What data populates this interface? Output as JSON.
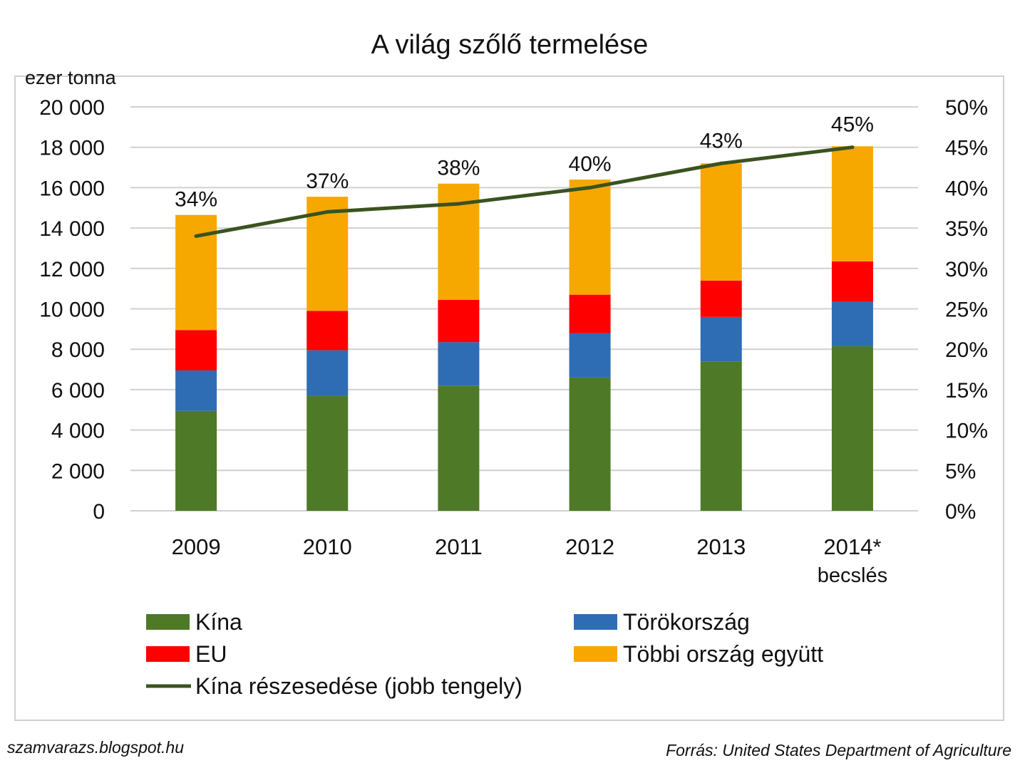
{
  "chart_data": {
    "type": "bar",
    "stacked": true,
    "title": "A világ szőlő termelése",
    "ylabel": "ezer tonna",
    "ylim": [
      0,
      20000
    ],
    "y_ticks": [
      "20 000",
      "18 000",
      "16 000",
      "14 000",
      "12 000",
      "10 000",
      "8 000",
      "6 000",
      "4 000",
      "2 000",
      "0"
    ],
    "y2lim": [
      0,
      50
    ],
    "y2_ticks": [
      "50%",
      "45%",
      "40%",
      "35%",
      "30%",
      "25%",
      "20%",
      "15%",
      "10%",
      "5%",
      "0%"
    ],
    "categories": [
      "2009",
      "2010",
      "2011",
      "2012",
      "2013",
      "2014*"
    ],
    "category_sublabels": [
      "",
      "",
      "",
      "",
      "",
      "becslés"
    ],
    "series": [
      {
        "name": "Kína",
        "color": "#4e7a27",
        "values": [
          4950,
          5700,
          6200,
          6600,
          7400,
          8150
        ]
      },
      {
        "name": "Törökország",
        "color": "#2e6db4",
        "values": [
          2000,
          2250,
          2150,
          2200,
          2200,
          2200
        ]
      },
      {
        "name": "EU",
        "color": "#ff0000",
        "values": [
          2000,
          1950,
          2100,
          1900,
          1800,
          2000
        ]
      },
      {
        "name": "Többi ország együtt",
        "color": "#f6a800",
        "values": [
          5700,
          5650,
          5750,
          5700,
          5800,
          5700
        ]
      }
    ],
    "line": {
      "name": "Kína részesedése (jobb tengely)",
      "color": "#3a5320",
      "axis": "right",
      "values": [
        34,
        37,
        38,
        40,
        43,
        45
      ],
      "labels": [
        "34%",
        "37%",
        "38%",
        "40%",
        "43%",
        "45%"
      ]
    },
    "legend": {
      "placement": "bottom",
      "items": [
        {
          "name": "Kína",
          "kind": "box",
          "color": "#4e7a27"
        },
        {
          "name": "Törökország",
          "kind": "box",
          "color": "#2e6db4"
        },
        {
          "name": "EU",
          "kind": "box",
          "color": "#ff0000"
        },
        {
          "name": "Többi ország együtt",
          "kind": "box",
          "color": "#f6a800"
        },
        {
          "name": "Kína részesedése (jobb tengely)",
          "kind": "line",
          "color": "#3a5320"
        }
      ]
    }
  },
  "footer": {
    "left": "szamvarazs.blogspot.hu",
    "right": "Forrás: United States Department of Agriculture"
  }
}
